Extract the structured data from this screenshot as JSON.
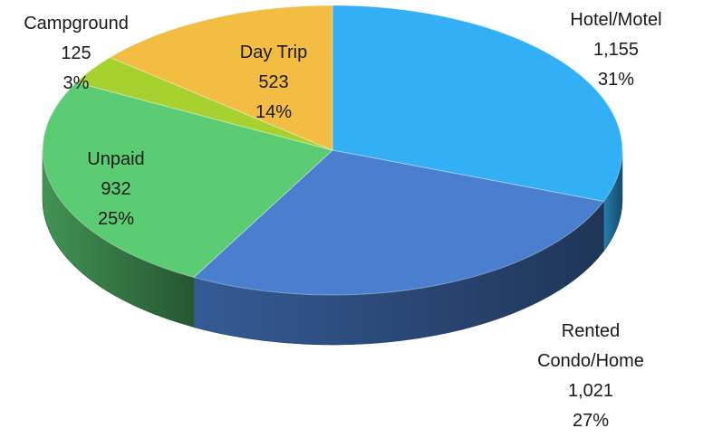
{
  "chart_data": {
    "type": "pie",
    "title": "",
    "three_d": true,
    "legend": "none",
    "series": [
      {
        "name": "",
        "slices": [
          {
            "label": "Hotel/Motel",
            "value": 1155,
            "value_text": "1,155",
            "percent_text": "31%",
            "color": "#33b0f5"
          },
          {
            "label": "Rented Condo/Home",
            "label_lines": [
              "Rented",
              "Condo/Home"
            ],
            "value": 1021,
            "value_text": "1,021",
            "percent_text": "27%",
            "color": "#4a7fd0"
          },
          {
            "label": "Unpaid",
            "value": 932,
            "value_text": "932",
            "percent_text": "25%",
            "color": "#5bcc74"
          },
          {
            "label": "Campground",
            "value": 125,
            "value_text": "125",
            "percent_text": "3%",
            "color": "#a6d12e"
          },
          {
            "label": "Day Trip",
            "value": 523,
            "value_text": "523",
            "percent_text": "14%",
            "color": "#f2bd42"
          }
        ]
      }
    ]
  }
}
